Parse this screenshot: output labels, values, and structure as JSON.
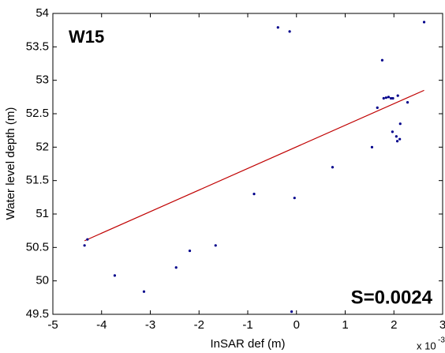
{
  "chart_data": {
    "type": "scatter",
    "x_label": "InSAR def (m)",
    "y_label": "Water level depth (m)",
    "x_scale_label": {
      "base": "x 10",
      "exponent": "-3"
    },
    "annotations": [
      {
        "text": "W15"
      },
      {
        "text": "S=0.0024"
      }
    ],
    "xlim": [
      -5,
      3
    ],
    "xticks": [
      -5,
      -4,
      -3,
      -2,
      -1,
      0,
      1,
      2,
      3
    ],
    "ylim": [
      49.5,
      54
    ],
    "yticks": [
      49.5,
      50,
      50.5,
      51,
      51.5,
      52,
      52.5,
      53,
      53.5,
      54
    ],
    "grid": false,
    "series": [
      {
        "color": "#00008b",
        "x": [
          -4.35,
          -4.29,
          -3.73,
          -3.13,
          -2.47,
          -2.19,
          -1.66,
          -0.87,
          -0.04,
          -0.1,
          -0.38,
          -0.14,
          0.74,
          1.55,
          1.66,
          1.76,
          1.79,
          1.84,
          1.89,
          1.94,
          1.98,
          2.08,
          1.97,
          2.05,
          2.07,
          2.12,
          2.13,
          2.28,
          2.62
        ],
        "values": [
          50.53,
          50.62,
          50.08,
          49.84,
          50.2,
          50.45,
          50.53,
          51.3,
          51.24,
          49.54,
          53.79,
          53.73,
          51.7,
          52.0,
          52.59,
          53.3,
          52.73,
          52.74,
          52.75,
          52.73,
          52.73,
          52.77,
          52.23,
          52.16,
          52.09,
          52.12,
          52.35,
          52.67,
          53.87
        ]
      }
    ],
    "fit_line": {
      "color": "#c00000",
      "x": [
        -4.35,
        2.62
      ],
      "values": [
        50.6,
        52.85
      ]
    }
  }
}
